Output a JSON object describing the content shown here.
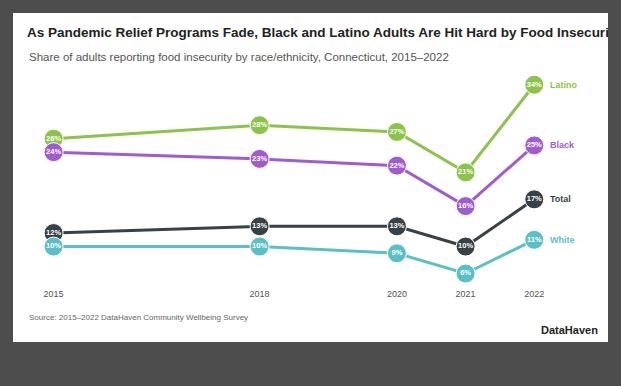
{
  "chart_data": {
    "type": "line",
    "title": "As Pandemic Relief Programs Fade, Black and Latino Adults Are Hit Hard by Food Insecurity.",
    "subtitle": "Share of adults reporting food insecurity by race/ethnicity, Connecticut, 2015–2022",
    "source": "Source: 2015–2022 DataHaven Community Wellbeing Survey",
    "credit": "DataHaven",
    "x": [
      2015,
      2018,
      2020,
      2021,
      2022
    ],
    "xlim": [
      2014.7,
      2022.2
    ],
    "xticks": [
      2015,
      2018,
      2020,
      2021,
      2022
    ],
    "ylim": [
      4,
      35
    ],
    "tick_labels": "x",
    "grid": false,
    "data_labels": true,
    "marker": "circle",
    "line_style": "solid",
    "series": [
      {
        "name": "Latino",
        "color": "#8cc34b",
        "values": [
          26,
          28,
          27,
          21,
          34
        ],
        "value_labels": [
          "26%",
          "28%",
          "27%",
          "21%",
          "34%"
        ]
      },
      {
        "name": "Black",
        "color": "#a05ccf",
        "values": [
          24,
          23,
          22,
          16,
          25
        ],
        "value_labels": [
          "24%",
          "23%",
          "22%",
          "16%",
          "25%"
        ]
      },
      {
        "name": "Total",
        "color": "#394148",
        "values": [
          12,
          13,
          13,
          10,
          17
        ],
        "value_labels": [
          "12%",
          "13%",
          "13%",
          "10%",
          "17%"
        ]
      },
      {
        "name": "White",
        "color": "#5bbfc6",
        "values": [
          10,
          10,
          9,
          6,
          11
        ],
        "value_labels": [
          "10%",
          "10%",
          "9%",
          "6%",
          "11%"
        ]
      }
    ]
  }
}
